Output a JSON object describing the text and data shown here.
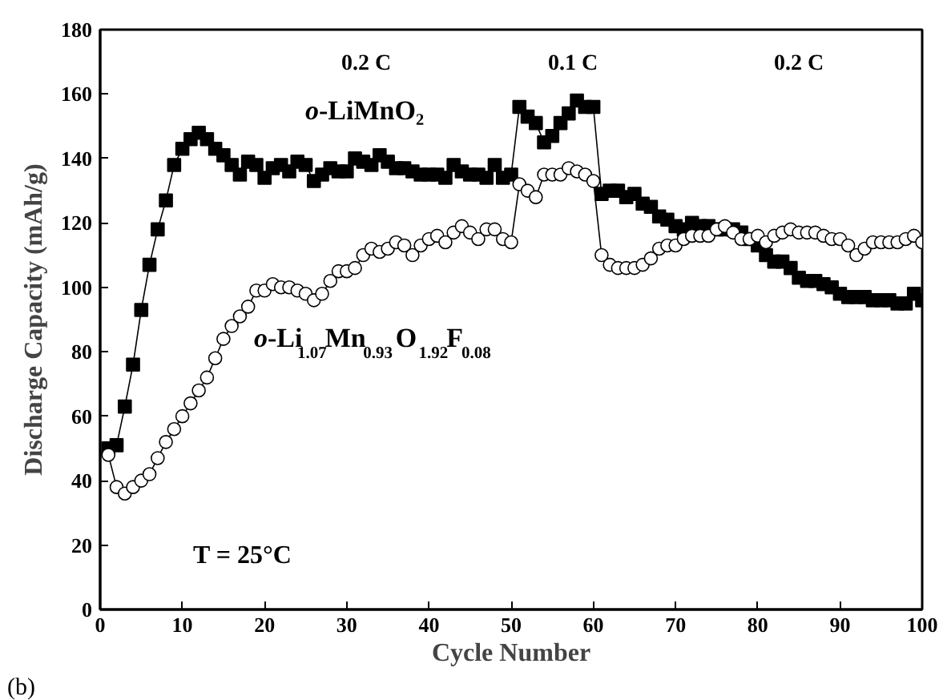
{
  "chart_data": {
    "type": "line",
    "xlabel": "Cycle Number",
    "ylabel": "Discharge Capacity (mAh/g)",
    "xlim": [
      0,
      100
    ],
    "ylim": [
      0,
      180
    ],
    "xticks": [
      0,
      10,
      20,
      30,
      40,
      50,
      60,
      70,
      80,
      90,
      100
    ],
    "yticks": [
      0,
      20,
      40,
      60,
      80,
      100,
      120,
      140,
      160,
      180
    ],
    "grid": false,
    "x": [
      1,
      2,
      3,
      4,
      5,
      6,
      7,
      8,
      9,
      10,
      11,
      12,
      13,
      14,
      15,
      16,
      17,
      18,
      19,
      20,
      21,
      22,
      23,
      24,
      25,
      26,
      27,
      28,
      29,
      30,
      31,
      32,
      33,
      34,
      35,
      36,
      37,
      38,
      39,
      40,
      41,
      42,
      43,
      44,
      45,
      46,
      47,
      48,
      49,
      50,
      51,
      52,
      53,
      54,
      55,
      56,
      57,
      58,
      59,
      60,
      61,
      62,
      63,
      64,
      65,
      66,
      67,
      68,
      69,
      70,
      71,
      72,
      73,
      74,
      75,
      76,
      77,
      78,
      79,
      80,
      81,
      82,
      83,
      84,
      85,
      86,
      87,
      88,
      89,
      90,
      91,
      92,
      93,
      94,
      95,
      96,
      97,
      98,
      99,
      100
    ],
    "series": [
      {
        "name": "o-LiMnO₂",
        "color": "#000000",
        "marker": "square",
        "values": [
          50,
          51,
          63,
          76,
          93,
          107,
          118,
          127,
          138,
          143,
          146,
          148,
          146,
          143,
          141,
          138,
          135,
          139,
          138,
          134,
          137,
          138,
          136,
          139,
          138,
          133,
          135,
          137,
          136,
          136,
          140,
          139,
          138,
          141,
          139,
          137,
          137,
          136,
          135,
          135,
          135,
          134,
          138,
          136,
          135,
          135,
          134,
          138,
          134,
          135,
          156,
          153,
          151,
          145,
          147,
          151,
          154,
          158,
          156,
          156,
          129,
          130,
          130,
          128,
          129,
          126,
          125,
          122,
          121,
          119,
          118,
          120,
          119,
          119,
          118,
          118,
          118,
          117,
          115,
          113,
          110,
          108,
          108,
          106,
          103,
          102,
          102,
          101,
          100,
          98,
          97,
          97,
          97,
          96,
          96,
          96,
          95,
          95,
          98,
          96
        ]
      },
      {
        "name": "o-Li$_{1.07}$Mn$_{0.93}$O$_{1.92}$F$_{0.08}$",
        "color": "#000000",
        "marker": "circle",
        "values": [
          48,
          38,
          36,
          38,
          40,
          42,
          47,
          52,
          56,
          60,
          64,
          68,
          72,
          78,
          84,
          88,
          91,
          94,
          99,
          99,
          101,
          100,
          100,
          99,
          98,
          96,
          98,
          102,
          105,
          105,
          106,
          110,
          112,
          111,
          112,
          114,
          113,
          110,
          113,
          115,
          116,
          114,
          117,
          119,
          117,
          115,
          118,
          118,
          115,
          114,
          132,
          130,
          128,
          135,
          135,
          135,
          137,
          136,
          135,
          133,
          110,
          107,
          106,
          106,
          106,
          107,
          109,
          112,
          113,
          113,
          115,
          116,
          116,
          116,
          118,
          119,
          117,
          115,
          115,
          116,
          114,
          116,
          117,
          118,
          117,
          117,
          117,
          116,
          115,
          115,
          113,
          110,
          112,
          114,
          114,
          114,
          114,
          115,
          116,
          114
        ]
      }
    ],
    "annotations": [
      "0.2 C",
      "0.1 C",
      "0.2 C",
      "T = 25°C",
      "(b)"
    ]
  }
}
